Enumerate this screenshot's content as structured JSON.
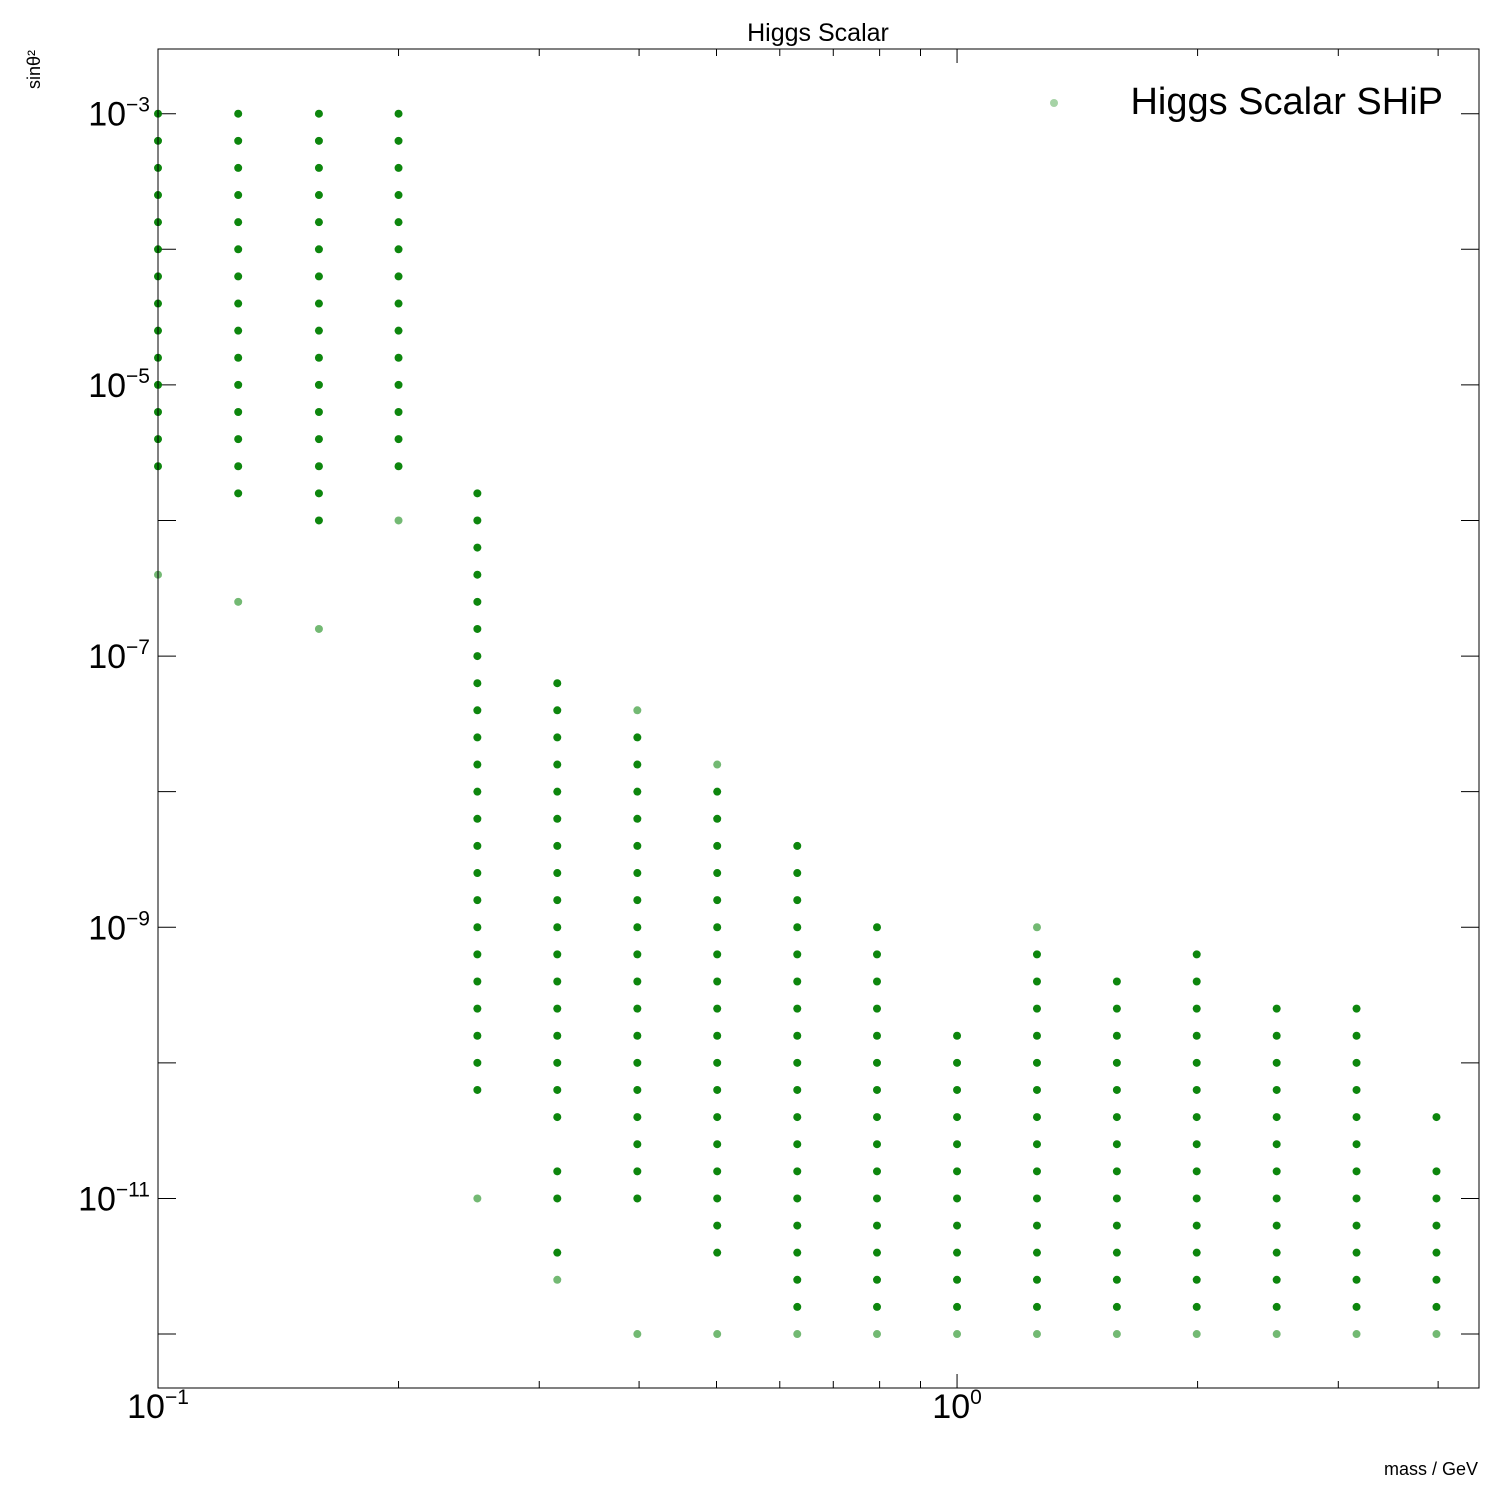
{
  "chart_data": {
    "type": "scatter",
    "title": "Higgs Scalar",
    "xlabel": "mass / GeV",
    "ylabel": "sinθ²",
    "xscale": "log",
    "yscale": "log",
    "xlim": [
      0.1,
      4.5
    ],
    "ylim": [
      4e-13,
      0.003
    ],
    "x_ticks": [
      {
        "base": "10",
        "exp": "−1",
        "value": 0.1
      },
      {
        "base": "10",
        "exp": "0",
        "value": 1
      }
    ],
    "y_ticks": [
      {
        "base": "10",
        "exp": "−3",
        "value": 0.001
      },
      {
        "base": "10",
        "exp": "−5",
        "value": 1e-05
      },
      {
        "base": "10",
        "exp": "−7",
        "value": 1e-07
      },
      {
        "base": "10",
        "exp": "−9",
        "value": 1e-09
      },
      {
        "base": "10",
        "exp": "−11",
        "value": 1e-11
      }
    ],
    "grid": false,
    "legend": {
      "position": "top-right",
      "entries": [
        "Higgs Scalar SHiP"
      ]
    },
    "marker_color": "#008000",
    "series": [
      {
        "name": "Higgs Scalar SHiP",
        "columns": [
          {
            "x": 0.1,
            "ylog": [
              -3.0,
              -3.2,
              -3.4,
              -3.6,
              -3.8,
              -4.0,
              -4.2,
              -4.4,
              -4.6,
              -4.8,
              -5.0,
              -5.2,
              -5.4,
              -5.6,
              -6.4
            ]
          },
          {
            "x": 0.126,
            "ylog": [
              -3.0,
              -3.2,
              -3.4,
              -3.6,
              -3.8,
              -4.0,
              -4.2,
              -4.4,
              -4.6,
              -4.8,
              -5.0,
              -5.2,
              -5.4,
              -5.6,
              -5.8,
              -6.6
            ]
          },
          {
            "x": 0.159,
            "ylog": [
              -3.0,
              -3.2,
              -3.4,
              -3.6,
              -3.8,
              -4.0,
              -4.2,
              -4.4,
              -4.6,
              -4.8,
              -5.0,
              -5.2,
              -5.4,
              -5.6,
              -5.8,
              -6.0,
              -6.8
            ]
          },
          {
            "x": 0.2,
            "ylog": [
              -3.0,
              -3.2,
              -3.4,
              -3.6,
              -3.8,
              -4.0,
              -4.2,
              -4.4,
              -4.6,
              -4.8,
              -5.0,
              -5.2,
              -5.4,
              -5.6,
              -6.0
            ]
          },
          {
            "x": 0.251,
            "ylog": [
              -5.8,
              -6.0,
              -6.2,
              -6.4,
              -6.6,
              -6.8,
              -7.0,
              -7.2,
              -7.4,
              -7.6,
              -7.8,
              -8.0,
              -8.2,
              -8.4,
              -8.6,
              -8.8,
              -9.0,
              -9.2,
              -9.4,
              -9.6,
              -9.8,
              -10.0,
              -10.2,
              -11.0
            ]
          },
          {
            "x": 0.316,
            "ylog": [
              -7.2,
              -7.4,
              -7.6,
              -7.8,
              -8.0,
              -8.2,
              -8.4,
              -8.6,
              -8.8,
              -9.0,
              -9.2,
              -9.4,
              -9.6,
              -9.8,
              -10.0,
              -10.2,
              -10.4,
              -10.8,
              -11.0,
              -11.4,
              -11.6
            ]
          },
          {
            "x": 0.398,
            "ylog": [
              -7.4,
              -7.6,
              -7.8,
              -8.0,
              -8.2,
              -8.4,
              -8.6,
              -8.8,
              -9.0,
              -9.2,
              -9.4,
              -9.6,
              -9.8,
              -10.0,
              -10.2,
              -10.4,
              -10.6,
              -10.8,
              -11.0,
              -12.0
            ]
          },
          {
            "x": 0.501,
            "ylog": [
              -7.8,
              -8.0,
              -8.2,
              -8.4,
              -8.6,
              -8.8,
              -9.0,
              -9.2,
              -9.4,
              -9.6,
              -9.8,
              -10.0,
              -10.2,
              -10.4,
              -10.6,
              -10.8,
              -11.0,
              -11.2,
              -11.4,
              -12.0
            ]
          },
          {
            "x": 0.631,
            "ylog": [
              -8.4,
              -8.6,
              -8.8,
              -9.0,
              -9.2,
              -9.4,
              -9.6,
              -9.8,
              -10.0,
              -10.2,
              -10.4,
              -10.6,
              -10.8,
              -11.0,
              -11.2,
              -11.4,
              -11.6,
              -11.8,
              -12.0
            ]
          },
          {
            "x": 0.794,
            "ylog": [
              -9.0,
              -9.2,
              -9.4,
              -9.6,
              -9.8,
              -10.0,
              -10.2,
              -10.4,
              -10.6,
              -10.8,
              -11.0,
              -11.2,
              -11.4,
              -11.6,
              -11.8,
              -12.0
            ]
          },
          {
            "x": 1.0,
            "ylog": [
              -9.8,
              -10.0,
              -10.2,
              -10.4,
              -10.6,
              -10.8,
              -11.0,
              -11.2,
              -11.4,
              -11.6,
              -11.8,
              -12.0
            ]
          },
          {
            "x": 1.259,
            "ylog": [
              -9.0,
              -9.2,
              -9.4,
              -9.6,
              -9.8,
              -10.0,
              -10.2,
              -10.4,
              -10.6,
              -10.8,
              -11.0,
              -11.2,
              -11.4,
              -11.6,
              -11.8,
              -12.0
            ]
          },
          {
            "x": 1.585,
            "ylog": [
              -9.4,
              -9.6,
              -9.8,
              -10.0,
              -10.2,
              -10.4,
              -10.6,
              -10.8,
              -11.0,
              -11.2,
              -11.4,
              -11.6,
              -11.8,
              -12.0
            ]
          },
          {
            "x": 1.995,
            "ylog": [
              -9.2,
              -9.4,
              -9.6,
              -9.8,
              -10.0,
              -10.2,
              -10.4,
              -10.6,
              -10.8,
              -11.0,
              -11.2,
              -11.4,
              -11.6,
              -11.8,
              -12.0
            ]
          },
          {
            "x": 2.512,
            "ylog": [
              -9.6,
              -9.8,
              -10.0,
              -10.2,
              -10.4,
              -10.6,
              -10.8,
              -11.0,
              -11.2,
              -11.4,
              -11.6,
              -11.8,
              -12.0
            ]
          },
          {
            "x": 3.162,
            "ylog": [
              -9.6,
              -9.8,
              -10.0,
              -10.2,
              -10.4,
              -10.6,
              -10.8,
              -11.0,
              -11.2,
              -11.4,
              -11.6,
              -11.8,
              -12.0
            ]
          },
          {
            "x": 3.981,
            "ylog": [
              -10.4,
              -10.8,
              -11.0,
              -11.2,
              -11.4,
              -11.6,
              -11.8,
              -12.0
            ]
          }
        ]
      }
    ]
  }
}
